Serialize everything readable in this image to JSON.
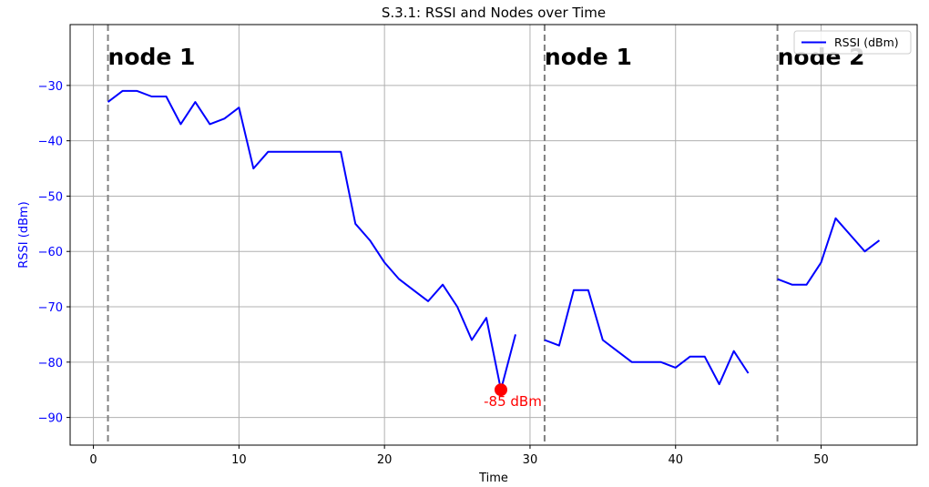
{
  "chart_data": {
    "type": "line",
    "title": "S.3.1: RSSI and Nodes over Time",
    "xlabel": "Time",
    "ylabel": "RSSI (dBm)",
    "xlim": [
      -1.6,
      56.6
    ],
    "ylim": [
      -95,
      -19
    ],
    "x_ticks": [
      0,
      10,
      20,
      30,
      40,
      50
    ],
    "y_ticks": [
      -30,
      -40,
      -50,
      -60,
      -70,
      -80,
      -90
    ],
    "y_tick_labels": [
      "−30",
      "−40",
      "−50",
      "−60",
      "−70",
      "−80",
      "−90"
    ],
    "grid": true,
    "legend_position": "top-right",
    "series": [
      {
        "name": "RSSI (dBm)",
        "color": "#0000ff",
        "segments": [
          [
            [
              1,
              -33
            ],
            [
              2,
              -31
            ],
            [
              3,
              -31
            ],
            [
              4,
              -32
            ],
            [
              5,
              -32
            ],
            [
              6,
              -37
            ],
            [
              7,
              -33
            ],
            [
              8,
              -37
            ],
            [
              9,
              -36
            ],
            [
              10,
              -34
            ],
            [
              11,
              -45
            ],
            [
              12,
              -42
            ],
            [
              13,
              -42
            ],
            [
              14,
              -42
            ],
            [
              15,
              -42
            ],
            [
              16,
              -42
            ],
            [
              17,
              -42
            ],
            [
              18,
              -55
            ],
            [
              19,
              -58
            ],
            [
              20,
              -62
            ],
            [
              21,
              -65
            ],
            [
              22,
              -67
            ],
            [
              23,
              -69
            ],
            [
              24,
              -66
            ],
            [
              25,
              -70
            ],
            [
              26,
              -76
            ],
            [
              27,
              -72
            ],
            [
              28,
              -85
            ],
            [
              29,
              -75
            ]
          ],
          [
            [
              31,
              -76
            ],
            [
              32,
              -77
            ],
            [
              33,
              -67
            ],
            [
              34,
              -67
            ],
            [
              35,
              -76
            ],
            [
              36,
              -78
            ],
            [
              37,
              -80
            ],
            [
              38,
              -80
            ],
            [
              39,
              -80
            ],
            [
              40,
              -81
            ],
            [
              41,
              -79
            ],
            [
              42,
              -79
            ],
            [
              43,
              -84
            ],
            [
              44,
              -78
            ],
            [
              45,
              -82
            ]
          ],
          [
            [
              47,
              -65
            ],
            [
              48,
              -66
            ],
            [
              49,
              -66
            ],
            [
              50,
              -62
            ],
            [
              51,
              -54
            ],
            [
              52,
              -57
            ],
            [
              53,
              -60
            ],
            [
              54,
              -58
            ]
          ]
        ]
      }
    ],
    "node_markers": [
      {
        "x": 1,
        "label": "node 1"
      },
      {
        "x": 31,
        "label": "node 1"
      },
      {
        "x": 47,
        "label": "node 2"
      }
    ],
    "annotation": {
      "x": 28,
      "y": -85,
      "label": "-85 dBm",
      "color": "#ff0000"
    },
    "colors": {
      "axis_y": "#0000ff",
      "grid": "#b0b0b0",
      "vline": "#808080"
    }
  }
}
